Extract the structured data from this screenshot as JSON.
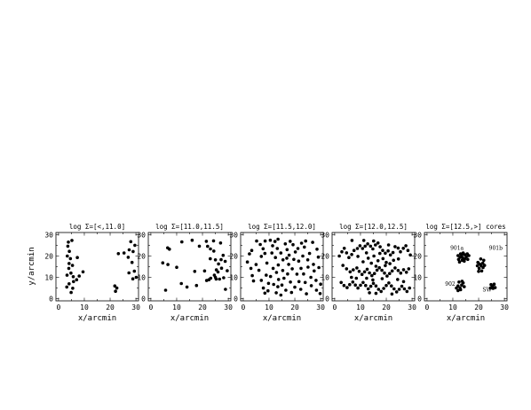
{
  "chart_data": [
    {
      "type": "scatter",
      "title": "log Σ=[<,11.0]",
      "xlabel": "x/arcmin",
      "ylabel": "y/arcmin",
      "xlim": [
        -1,
        31
      ],
      "ylim": [
        -1,
        31
      ],
      "xticks": [
        "0",
        "10",
        "20",
        "30"
      ],
      "yticks": [
        "0",
        "10",
        "20",
        "30"
      ],
      "annotations": [],
      "points": [
        [
          3.8,
          26.5
        ],
        [
          5.2,
          27.3
        ],
        [
          3.6,
          24.6
        ],
        [
          4.2,
          22.2
        ],
        [
          3.4,
          20.0
        ],
        [
          4.6,
          18.8
        ],
        [
          4.1,
          16.5
        ],
        [
          5.4,
          15.6
        ],
        [
          4.0,
          14.2
        ],
        [
          4.8,
          12.0
        ],
        [
          3.3,
          11.0
        ],
        [
          5.7,
          10.3
        ],
        [
          7.0,
          8.9
        ],
        [
          5.8,
          8.0
        ],
        [
          8.0,
          10.6
        ],
        [
          9.5,
          12.6
        ],
        [
          7.3,
          19.3
        ],
        [
          4.1,
          7.0
        ],
        [
          3.2,
          5.5
        ],
        [
          5.5,
          4.9
        ],
        [
          4.9,
          2.9
        ],
        [
          22.6,
          5.0
        ],
        [
          22.1,
          3.5
        ],
        [
          21.8,
          6.0
        ],
        [
          23.2,
          21.1
        ],
        [
          25.4,
          21.4
        ],
        [
          27.4,
          22.9
        ],
        [
          28.9,
          22.1
        ],
        [
          28.0,
          26.7
        ],
        [
          29.6,
          25.0
        ],
        [
          27.0,
          19.4
        ],
        [
          28.5,
          17.0
        ],
        [
          28.8,
          9.3
        ],
        [
          27.3,
          12.1
        ],
        [
          30.1,
          10.0
        ],
        [
          29.4,
          12.9
        ]
      ]
    },
    {
      "type": "scatter",
      "title": "log Σ=[11.0,11.5]",
      "xlabel": "x/arcmin",
      "ylabel": "",
      "xlim": [
        -1,
        31
      ],
      "ylim": [
        -1,
        31
      ],
      "xticks": [
        "0",
        "10",
        "20",
        "30"
      ],
      "yticks": [
        "0",
        "10",
        "20",
        "30"
      ],
      "annotations": [],
      "points": [
        [
          6.5,
          23.8
        ],
        [
          7.2,
          23.2
        ],
        [
          12.0,
          26.6
        ],
        [
          16.0,
          27.4
        ],
        [
          21.5,
          26.9
        ],
        [
          24.3,
          27.1
        ],
        [
          22.0,
          24.5
        ],
        [
          23.1,
          23.3
        ],
        [
          6.6,
          16.0
        ],
        [
          5.7,
          4.0
        ],
        [
          11.8,
          7.1
        ],
        [
          14.0,
          5.5
        ],
        [
          17.7,
          6.2
        ],
        [
          17.0,
          12.8
        ],
        [
          20.8,
          13.0
        ],
        [
          22.5,
          8.9
        ],
        [
          21.6,
          8.5
        ],
        [
          23.2,
          9.6
        ],
        [
          25.0,
          10.0
        ],
        [
          26.6,
          9.2
        ],
        [
          24.6,
          11.0
        ],
        [
          26.0,
          12.5
        ],
        [
          25.4,
          13.5
        ],
        [
          27.4,
          14.3
        ],
        [
          26.2,
          16.3
        ],
        [
          25.0,
          18.2
        ],
        [
          27.2,
          18.3
        ],
        [
          28.8,
          17.5
        ],
        [
          28.0,
          20.3
        ],
        [
          24.4,
          22.3
        ],
        [
          29.6,
          13.1
        ],
        [
          28.2,
          9.8
        ],
        [
          25.3,
          9.2
        ],
        [
          18.8,
          24.6
        ],
        [
          4.6,
          16.8
        ],
        [
          28.9,
          4.4
        ],
        [
          10.0,
          14.7
        ],
        [
          23.0,
          18.7
        ],
        [
          27.0,
          26.1
        ]
      ]
    },
    {
      "type": "scatter",
      "title": "log Σ=[11.5,12.0]",
      "xlabel": "x/arcmin",
      "ylabel": "",
      "xlim": [
        -1,
        31
      ],
      "ylim": [
        -1,
        31
      ],
      "xticks": [
        "0",
        "10",
        "20",
        "30"
      ],
      "yticks": [
        "0",
        "10",
        "20",
        "30"
      ],
      "annotations": [],
      "points": [
        [
          1.6,
          17.2
        ],
        [
          2.4,
          21.0
        ],
        [
          3.3,
          22.6
        ],
        [
          3.5,
          10.8
        ],
        [
          4.0,
          8.3
        ],
        [
          5.0,
          16.0
        ],
        [
          6.1,
          13.3
        ],
        [
          7.0,
          19.8
        ],
        [
          7.7,
          23.4
        ],
        [
          6.6,
          25.4
        ],
        [
          8.5,
          27.0
        ],
        [
          8.4,
          21.2
        ],
        [
          9.2,
          16.7
        ],
        [
          8.9,
          11.0
        ],
        [
          9.8,
          7.2
        ],
        [
          7.8,
          5.0
        ],
        [
          8.4,
          2.6
        ],
        [
          9.6,
          3.7
        ],
        [
          10.6,
          10.4
        ],
        [
          11.6,
          14.2
        ],
        [
          11.1,
          21.4
        ],
        [
          11.4,
          24.8
        ],
        [
          12.3,
          26.8
        ],
        [
          13.5,
          27.9
        ],
        [
          13.2,
          23.5
        ],
        [
          12.5,
          19.3
        ],
        [
          13.6,
          15.8
        ],
        [
          12.9,
          12.3
        ],
        [
          13.7,
          9.0
        ],
        [
          13.4,
          5.6
        ],
        [
          12.8,
          2.8
        ],
        [
          14.6,
          21.4
        ],
        [
          15.4,
          18.2
        ],
        [
          15.3,
          13.2
        ],
        [
          15.8,
          9.6
        ],
        [
          15.0,
          6.4
        ],
        [
          16.5,
          4.0
        ],
        [
          16.3,
          25.7
        ],
        [
          17.0,
          23.0
        ],
        [
          17.8,
          20.4
        ],
        [
          17.6,
          16.1
        ],
        [
          17.2,
          11.6
        ],
        [
          18.3,
          7.8
        ],
        [
          18.7,
          2.9
        ],
        [
          19.0,
          14.0
        ],
        [
          19.6,
          18.4
        ],
        [
          20.2,
          21.9
        ],
        [
          19.3,
          25.3
        ],
        [
          21.2,
          23.5
        ],
        [
          20.8,
          11.5
        ],
        [
          21.6,
          8.0
        ],
        [
          22.3,
          4.4
        ],
        [
          21.5,
          17.6
        ],
        [
          22.4,
          14.2
        ],
        [
          23.1,
          20.0
        ],
        [
          23.7,
          24.2
        ],
        [
          24.2,
          27.0
        ],
        [
          23.4,
          11.6
        ],
        [
          24.0,
          7.6
        ],
        [
          24.5,
          2.3
        ],
        [
          25.1,
          14.8
        ],
        [
          25.0,
          18.2
        ],
        [
          25.7,
          21.2
        ],
        [
          26.2,
          10.0
        ],
        [
          26.4,
          6.1
        ],
        [
          27.2,
          16.1
        ],
        [
          27.5,
          13.0
        ],
        [
          28.2,
          8.6
        ],
        [
          28.4,
          4.0
        ],
        [
          29.1,
          19.5
        ],
        [
          28.6,
          23.2
        ],
        [
          29.3,
          14.6
        ],
        [
          30.0,
          6.8
        ],
        [
          29.8,
          2.4
        ],
        [
          20.0,
          5.4
        ],
        [
          10.5,
          27.4
        ],
        [
          5.2,
          27.0
        ],
        [
          11.8,
          6.7
        ],
        [
          14.6,
          1.7
        ],
        [
          26.9,
          26.4
        ],
        [
          7.0,
          8.6
        ],
        [
          16.9,
          19.0
        ],
        [
          22.6,
          26.0
        ],
        [
          3.0,
          14.2
        ],
        [
          18.2,
          26.9
        ]
      ]
    },
    {
      "type": "scatter",
      "title": "log Σ=[12.0,12.5]",
      "xlabel": "x/arcmin",
      "ylabel": "",
      "xlim": [
        -1,
        31
      ],
      "ylim": [
        -1,
        31
      ],
      "xticks": [
        "0",
        "10",
        "20",
        "30"
      ],
      "yticks": [
        "0",
        "10",
        "20",
        "30"
      ],
      "annotations": [],
      "points": [
        [
          1.8,
          20.0
        ],
        [
          2.8,
          22.0
        ],
        [
          3.7,
          23.6
        ],
        [
          4.6,
          21.5
        ],
        [
          5.5,
          19.3
        ],
        [
          6.6,
          20.7
        ],
        [
          7.5,
          22.6
        ],
        [
          8.8,
          23.5
        ],
        [
          9.8,
          24.8
        ],
        [
          10.8,
          23.5
        ],
        [
          11.8,
          24.6
        ],
        [
          12.8,
          25.7
        ],
        [
          13.9,
          24.6
        ],
        [
          14.8,
          23.3
        ],
        [
          15.8,
          25.2
        ],
        [
          16.8,
          26.1
        ],
        [
          17.6,
          24.3
        ],
        [
          18.6,
          22.6
        ],
        [
          19.6,
          21.3
        ],
        [
          20.7,
          22.4
        ],
        [
          21.6,
          20.5
        ],
        [
          22.6,
          21.6
        ],
        [
          23.4,
          24.4
        ],
        [
          24.6,
          23.7
        ],
        [
          25.5,
          22.0
        ],
        [
          26.6,
          23.6
        ],
        [
          27.6,
          24.8
        ],
        [
          28.4,
          22.6
        ],
        [
          29.3,
          20.5
        ],
        [
          3.2,
          15.6
        ],
        [
          4.6,
          14.0
        ],
        [
          6.0,
          12.6
        ],
        [
          7.2,
          13.5
        ],
        [
          8.6,
          14.4
        ],
        [
          9.5,
          12.8
        ],
        [
          10.6,
          11.4
        ],
        [
          11.6,
          12.6
        ],
        [
          12.6,
          13.8
        ],
        [
          13.5,
          12.1
        ],
        [
          14.4,
          10.8
        ],
        [
          15.4,
          11.8
        ],
        [
          16.4,
          13.4
        ],
        [
          17.3,
          14.5
        ],
        [
          18.3,
          13.3
        ],
        [
          19.3,
          12.0
        ],
        [
          20.3,
          10.6
        ],
        [
          21.3,
          11.8
        ],
        [
          22.3,
          13.0
        ],
        [
          23.4,
          14.4
        ],
        [
          24.6,
          13.2
        ],
        [
          25.6,
          12.0
        ],
        [
          26.7,
          13.6
        ],
        [
          27.8,
          12.4
        ],
        [
          28.7,
          14.0
        ],
        [
          2.5,
          7.6
        ],
        [
          3.6,
          6.2
        ],
        [
          4.8,
          5.2
        ],
        [
          5.8,
          6.6
        ],
        [
          7.0,
          7.8
        ],
        [
          8.0,
          6.4
        ],
        [
          9.0,
          5.0
        ],
        [
          10.0,
          6.3
        ],
        [
          11.0,
          7.6
        ],
        [
          12.0,
          6.2
        ],
        [
          13.0,
          4.6
        ],
        [
          14.0,
          5.8
        ],
        [
          15.0,
          7.2
        ],
        [
          16.0,
          6.0
        ],
        [
          17.0,
          4.4
        ],
        [
          18.0,
          3.4
        ],
        [
          19.0,
          4.8
        ],
        [
          20.0,
          6.2
        ],
        [
          21.0,
          7.4
        ],
        [
          22.0,
          6.0
        ],
        [
          23.0,
          4.6
        ],
        [
          24.0,
          3.2
        ],
        [
          25.0,
          4.4
        ],
        [
          26.0,
          5.8
        ],
        [
          27.0,
          4.6
        ],
        [
          28.0,
          3.4
        ],
        [
          29.0,
          5.0
        ],
        [
          14.2,
          16.6
        ],
        [
          16.8,
          17.8
        ],
        [
          18.7,
          18.8
        ],
        [
          21.4,
          16.4
        ],
        [
          13.0,
          19.0
        ],
        [
          11.0,
          17.3
        ],
        [
          9.0,
          19.8
        ],
        [
          24.7,
          18.6
        ],
        [
          6.7,
          27.3
        ],
        [
          12.3,
          21.5
        ],
        [
          15.2,
          20.0
        ],
        [
          17.5,
          21.2
        ],
        [
          20.0,
          17.0
        ],
        [
          22.8,
          18.0
        ],
        [
          16.0,
          15.2
        ],
        [
          19.6,
          15.5
        ],
        [
          14.8,
          8.8
        ],
        [
          18.4,
          9.4
        ],
        [
          12.4,
          9.6
        ],
        [
          16.0,
          2.5
        ],
        [
          13.5,
          2.8
        ],
        [
          22.2,
          2.2
        ],
        [
          8.4,
          9.6
        ],
        [
          24.4,
          9.0
        ],
        [
          26.7,
          8.0
        ],
        [
          6.5,
          10.0
        ],
        [
          20.9,
          25.2
        ],
        [
          15.1,
          27.0
        ],
        [
          11.3,
          27.3
        ]
      ]
    },
    {
      "type": "scatter",
      "title": "log Σ=[12.5,>] cores",
      "xlabel": "x/arcmin",
      "ylabel": "",
      "xlim": [
        -1,
        31
      ],
      "ylim": [
        -1,
        31
      ],
      "xticks": [
        "0",
        "10",
        "20",
        "30"
      ],
      "yticks": [
        "0",
        "10",
        "20",
        "30"
      ],
      "annotations": [
        "901a",
        "901b",
        "902",
        "SW"
      ],
      "points": [
        [
          12.2,
          18.4
        ],
        [
          12.8,
          19.4
        ],
        [
          13.4,
          20.4
        ],
        [
          14.0,
          21.4
        ],
        [
          14.6,
          20.6
        ],
        [
          15.2,
          19.6
        ],
        [
          13.6,
          18.0
        ],
        [
          14.4,
          17.6
        ],
        [
          15.6,
          21.0
        ],
        [
          13.0,
          21.0
        ],
        [
          14.6,
          18.6
        ],
        [
          12.6,
          17.2
        ],
        [
          15.8,
          18.4
        ],
        [
          13.8,
          19.2
        ],
        [
          16.2,
          20.2
        ],
        [
          12.0,
          20.2
        ],
        [
          19.7,
          17.0
        ],
        [
          20.4,
          16.2
        ],
        [
          21.0,
          15.4
        ],
        [
          21.7,
          14.6
        ],
        [
          20.2,
          14.2
        ],
        [
          21.6,
          16.6
        ],
        [
          22.0,
          18.0
        ],
        [
          20.8,
          18.6
        ],
        [
          20.0,
          12.8
        ],
        [
          21.2,
          13.0
        ],
        [
          22.3,
          15.6
        ],
        [
          19.5,
          15.4
        ],
        [
          12.0,
          6.0
        ],
        [
          12.8,
          5.0
        ],
        [
          13.4,
          6.4
        ],
        [
          14.0,
          7.4
        ],
        [
          12.4,
          7.8
        ],
        [
          13.0,
          4.2
        ],
        [
          14.4,
          5.6
        ],
        [
          11.4,
          5.0
        ],
        [
          13.6,
          8.2
        ],
        [
          12.0,
          3.8
        ],
        [
          24.8,
          6.6
        ],
        [
          25.4,
          5.8
        ],
        [
          26.0,
          6.8
        ],
        [
          25.6,
          4.8
        ],
        [
          26.4,
          5.2
        ],
        [
          24.6,
          5.0
        ]
      ]
    }
  ]
}
